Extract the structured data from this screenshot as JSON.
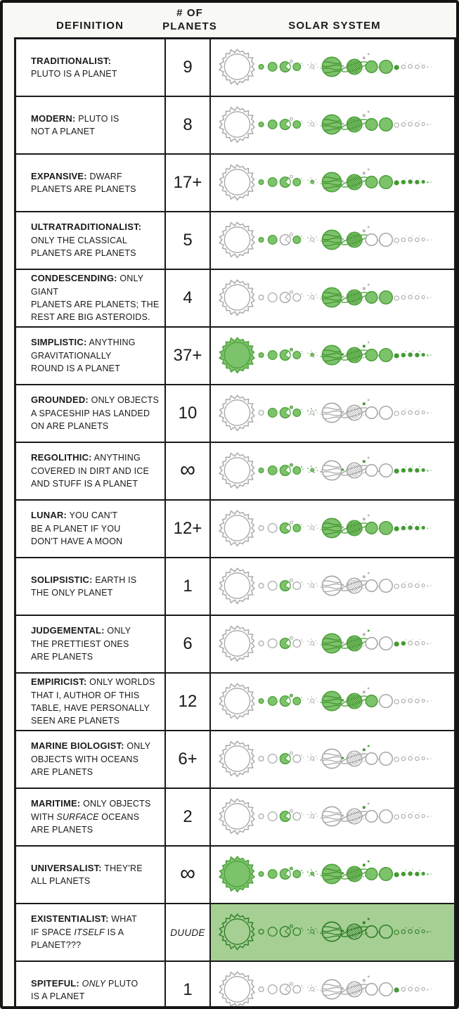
{
  "header": {
    "definition": "DEFINITION",
    "planets": "# OF\nPLANETS",
    "solar": "SOLAR SYSTEM"
  },
  "colors": {
    "green_fill": "#7dc36b",
    "green_stroke": "#4da13c",
    "green_dot": "#3f9a2e",
    "green_line": "#44912f",
    "gray": "#a8a8a8",
    "gray_dot": "#b5b5b5",
    "row_highlight_bg": "#a5cf93",
    "outline_green": "#2e7d28",
    "ink": "#1a1a1a",
    "paper": "#f8f8f4"
  },
  "solar_bodies": [
    "sun",
    "mercury",
    "venus",
    "earth",
    "moon",
    "earthspeck",
    "mars",
    "marsmoon1",
    "marsmoon2",
    "belt1",
    "belt2",
    "belt3",
    "belt4",
    "belt5",
    "belt6",
    "ceres",
    "jupmoon1",
    "jupmoon2",
    "jupiter",
    "jupdot1",
    "jupdot2",
    "saturn",
    "satdot1",
    "satdot2",
    "satdot3",
    "titan",
    "comet",
    "uranus",
    "uranusmoon",
    "neptune",
    "pluto",
    "tno1",
    "tick1",
    "tno2",
    "tick2",
    "tno3",
    "tick3",
    "tno4",
    "tno5",
    "tno6"
  ],
  "rows": [
    {
      "definition": [
        {
          "t": "TRADITIONALIST:",
          "b": 1
        },
        {
          "t": "\nPLUTO IS A PLANET"
        }
      ],
      "count": "9",
      "green": [
        "mercury",
        "venus",
        "earth",
        "mars",
        "jupiter",
        "saturn",
        "uranus",
        "neptune",
        "pluto"
      ]
    },
    {
      "definition": [
        {
          "t": "MODERN:",
          "b": 1
        },
        {
          "t": " PLUTO IS\nNOT A PLANET"
        }
      ],
      "count": "8",
      "green": [
        "mercury",
        "venus",
        "earth",
        "mars",
        "jupiter",
        "saturn",
        "uranus",
        "neptune"
      ]
    },
    {
      "definition": [
        {
          "t": "EXPANSIVE:",
          "b": 1
        },
        {
          "t": " DWARF\nPLANETS ARE PLANETS"
        }
      ],
      "count": "17+",
      "green": [
        "mercury",
        "venus",
        "earth",
        "mars",
        "ceres",
        "jupiter",
        "saturn",
        "uranus",
        "neptune",
        "pluto",
        "tno1",
        "tno2",
        "tno3",
        "tno4",
        "tno5",
        "tno6"
      ]
    },
    {
      "definition": [
        {
          "t": "ULTRATRADITIONALIST:",
          "b": 1
        },
        {
          "t": "\nONLY THE CLASSICAL\nPLANETS ARE PLANETS"
        }
      ],
      "count": "5",
      "green": [
        "mercury",
        "venus",
        "mars",
        "jupiter",
        "saturn"
      ]
    },
    {
      "definition": [
        {
          "t": "CONDESCENDING:",
          "b": 1
        },
        {
          "t": " ONLY GIANT\nPLANETS ARE PLANETS; THE\nREST ARE BIG ASTEROIDS."
        }
      ],
      "count": "4",
      "green": [
        "jupiter",
        "saturn",
        "uranus",
        "neptune"
      ]
    },
    {
      "definition": [
        {
          "t": "SIMPLISTIC:",
          "b": 1
        },
        {
          "t": " ANYTHING\nGRAVITATIONALLY\nROUND IS A PLANET"
        }
      ],
      "count": "37+",
      "green": [
        "sun",
        "mercury",
        "venus",
        "earth",
        "moon",
        "mars",
        "ceres",
        "jupmoon1",
        "jupmoon2",
        "jupiter",
        "jupdot1",
        "jupdot2",
        "saturn",
        "satdot1",
        "satdot2",
        "satdot3",
        "titan",
        "uranus",
        "uranusmoon",
        "neptune",
        "pluto",
        "tno1",
        "tno2",
        "tno3",
        "tno4",
        "tno5",
        "tno6",
        "tick1",
        "tick2",
        "tick3"
      ]
    },
    {
      "definition": [
        {
          "t": "GROUNDED:",
          "b": 1
        },
        {
          "t": " ONLY OBJECTS\nA SPACESHIP HAS LANDED\nON ARE PLANETS"
        }
      ],
      "count": "10",
      "green": [
        "venus",
        "earth",
        "moon",
        "mars",
        "belt1",
        "belt2",
        "belt3",
        "belt4",
        "belt5",
        "titan"
      ]
    },
    {
      "definition": [
        {
          "t": "REGOLITHIC:",
          "b": 1
        },
        {
          "t": " ANYTHING\nCOVERED IN DIRT AND ICE\nAND STUFF IS A PLANET"
        }
      ],
      "count": "∞",
      "green": [
        "mercury",
        "venus",
        "earth",
        "moon",
        "earthspeck",
        "mars",
        "marsmoon1",
        "marsmoon2",
        "belt1",
        "belt2",
        "belt3",
        "belt4",
        "belt5",
        "belt6",
        "ceres",
        "jupmoon1",
        "jupmoon2",
        "jupdot1",
        "jupdot2",
        "satdot1",
        "satdot2",
        "satdot3",
        "titan",
        "uranusmoon",
        "pluto",
        "tno1",
        "tno2",
        "tno3",
        "tno4",
        "tno5",
        "tno6",
        "tick1",
        "tick2",
        "tick3"
      ]
    },
    {
      "definition": [
        {
          "t": "LUNAR:",
          "b": 1
        },
        {
          "t": " YOU CAN'T\nBE A PLANET IF YOU\nDON'T HAVE A MOON"
        }
      ],
      "count": "12+",
      "green": [
        "earth",
        "mars",
        "jupiter",
        "saturn",
        "uranus",
        "neptune",
        "pluto",
        "tno1",
        "tno2",
        "tno3",
        "tno4",
        "tick1",
        "tick2",
        "tick3"
      ]
    },
    {
      "definition": [
        {
          "t": "SOLIPSISTIC:",
          "b": 1
        },
        {
          "t": " EARTH IS\nTHE ONLY PLANET"
        }
      ],
      "count": "1",
      "green": [
        "earth"
      ]
    },
    {
      "definition": [
        {
          "t": "JUDGEMENTAL:",
          "b": 1
        },
        {
          "t": " ONLY\nTHE PRETTIEST ONES\nARE PLANETS"
        }
      ],
      "count": "6",
      "green": [
        "earth",
        "jupiter",
        "saturn",
        "comet",
        "pluto",
        "tno1"
      ]
    },
    {
      "definition": [
        {
          "t": "EMPIRICIST:",
          "b": 1
        },
        {
          "t": " ONLY WORLDS\nTHAT I, AUTHOR OF THIS\nTABLE, HAVE PERSONALLY\nSEEN ARE PLANETS"
        }
      ],
      "count": "12",
      "green": [
        "mercury",
        "venus",
        "earth",
        "moon",
        "mars",
        "jupmoon1",
        "jupmoon2",
        "jupiter",
        "jupdot1",
        "jupdot2",
        "saturn",
        "uranus"
      ]
    },
    {
      "definition": [
        {
          "t": "MARINE BIOLOGIST:",
          "b": 1
        },
        {
          "t": " ONLY\nOBJECTS WITH OCEANS\nARE PLANETS"
        }
      ],
      "count": "6+",
      "green": [
        "earth",
        "jupmoon1",
        "jupmoon2",
        "jupdot1",
        "titan",
        "comet"
      ]
    },
    {
      "definition": [
        {
          "t": "MARITIME:",
          "b": 1
        },
        {
          "t": " ONLY OBJECTS\nWITH "
        },
        {
          "t": "SURFACE",
          "i": 1
        },
        {
          "t": " OCEANS\nARE PLANETS"
        }
      ],
      "count": "2",
      "green": [
        "earth",
        "titan"
      ]
    },
    {
      "definition": [
        {
          "t": "UNIVERSALIST:",
          "b": 1
        },
        {
          "t": " THEY'RE\nALL PLANETS"
        }
      ],
      "count": "∞",
      "green": [
        "*"
      ]
    },
    {
      "definition": [
        {
          "t": "EXISTENTIALIST:",
          "b": 1
        },
        {
          "t": " WHAT\nIF SPACE "
        },
        {
          "t": "ITSELF",
          "i": 1
        },
        {
          "t": " IS A\nPLANET???"
        }
      ],
      "count": "DUUDE",
      "green": [],
      "solar_style": "outline",
      "solar_bg": "highlight"
    },
    {
      "definition": [
        {
          "t": "SPITEFUL:",
          "b": 1
        },
        {
          "t": " "
        },
        {
          "t": "ONLY",
          "i": 1
        },
        {
          "t": " PLUTO\nIS A PLANET"
        }
      ],
      "count": "1",
      "green": [
        "pluto"
      ]
    }
  ]
}
